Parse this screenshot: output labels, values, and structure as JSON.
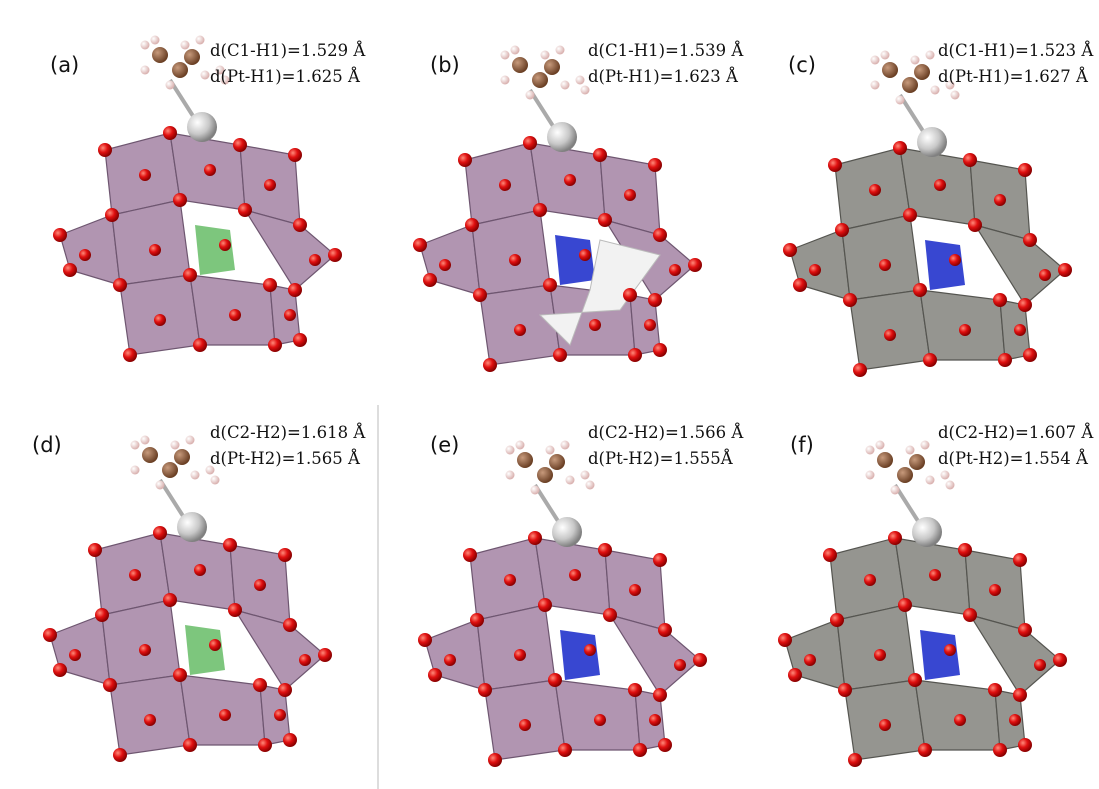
{
  "panels": [
    {
      "label": "(a)",
      "lines": [
        "d(C1-H1)=1.529 Å",
        "d(Pt-H1)=1.625 Å"
      ]
    },
    {
      "label": "(b)",
      "lines": [
        "d(C1-H1)=1.539 Å",
        "d(Pt-H1)=1.623 Å"
      ]
    },
    {
      "label": "(c)",
      "lines": [
        "d(C1-H1)=1.523 Å",
        "d(Pt-H1)=1.627 Å"
      ]
    },
    {
      "label": "(d)",
      "lines": [
        "d(C2-H2)=1.618 Å",
        "d(Pt-H2)=1.565 Å"
      ]
    },
    {
      "label": "(e)",
      "lines": [
        "d(C2-H2)=1.566 Å",
        "d(Pt-H2)=1.555Å"
      ]
    },
    {
      "label": "(f)",
      "lines": [
        "d(C2-H2)=1.607 Å",
        "d(Pt-H2)=1.554 Å"
      ]
    }
  ]
}
